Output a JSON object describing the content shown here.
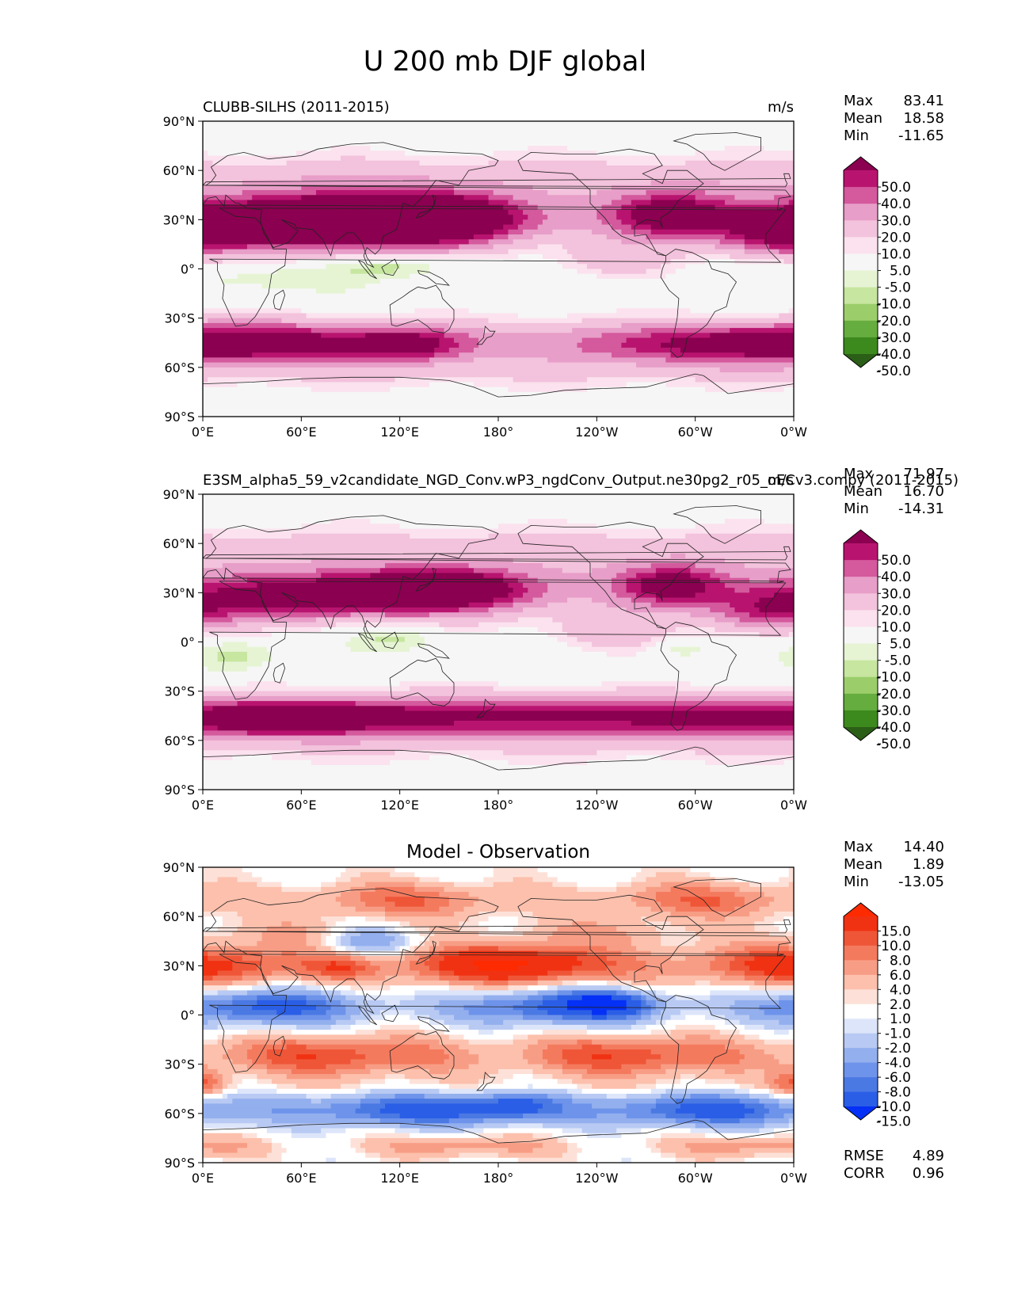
{
  "figure": {
    "title": "U 200 mb DJF global"
  },
  "palettes": {
    "field": [
      "#2b5e16",
      "#3c8a1e",
      "#66ad3f",
      "#9bce6b",
      "#c7e6a0",
      "#e6f4d4",
      "#f6f6f6",
      "#fbe2ee",
      "#f3c2dc",
      "#e79ec8",
      "#d4599d",
      "#b8146f",
      "#8b0050"
    ],
    "diff": [
      "#0530f5",
      "#2a5ee6",
      "#4b79e3",
      "#6e93ea",
      "#93afee",
      "#b8caf3",
      "#dde5fa",
      "#ffffff",
      "#fde1d8",
      "#fcc0ac",
      "#f89d85",
      "#f47a5e",
      "#ef5638",
      "#f03213",
      "#fe2a00"
    ],
    "land_line": "#222222"
  },
  "chart_data": [
    {
      "type": "heatmap",
      "panel": "reference",
      "title_left": "CLUBB-SILHS (2011-2015)",
      "title_center": "",
      "units": "m/s",
      "colormap": "field",
      "stats": [
        {
          "label": "Max",
          "value": "83.41"
        },
        {
          "label": "Mean",
          "value": "18.58"
        },
        {
          "label": "Min",
          "value": "-11.65"
        }
      ],
      "colorbar_labels": [
        "50.0",
        "40.0",
        "30.0",
        "20.0",
        "10.0",
        "5.0",
        "-5.0",
        "-10.0",
        "-20.0",
        "-30.0",
        "-40.0",
        "-50.0"
      ],
      "lat_ticks": [
        "90°N",
        "60°N",
        "30°N",
        "0°",
        "30°S",
        "60°S",
        "90°S"
      ],
      "lon_ticks": [
        "0°E",
        "60°E",
        "120°E",
        "180°",
        "120°W",
        "60°W",
        "0°W"
      ],
      "lat_range": [
        -90,
        90
      ],
      "lon_range": [
        0,
        360
      ],
      "jets": [
        {
          "lon": 60,
          "lat": 28,
          "peak": 55,
          "wlon": 55,
          "wlat": 10
        },
        {
          "lon": 140,
          "lat": 31,
          "peak": 60,
          "wlon": 35,
          "wlat": 9
        },
        {
          "lon": 100,
          "lat": 30,
          "peak": 38,
          "wlon": 50,
          "wlat": 12
        },
        {
          "lon": 285,
          "lat": 33,
          "peak": 50,
          "wlon": 25,
          "wlat": 9
        },
        {
          "lon": 350,
          "lat": 22,
          "peak": 38,
          "wlon": 25,
          "wlat": 10
        },
        {
          "lon": 40,
          "lat": -45,
          "peak": 40,
          "wlon": 50,
          "wlat": 8
        },
        {
          "lon": 125,
          "lat": -46,
          "peak": 36,
          "wlon": 25,
          "wlat": 7
        },
        {
          "lon": 310,
          "lat": -46,
          "peak": 33,
          "wlon": 55,
          "wlat": 8
        }
      ],
      "easterlies": [
        {
          "lon": 120,
          "lat": 2,
          "peak": -14,
          "wlon": 28,
          "wlat": 5
        },
        {
          "lon": 40,
          "lat": -5,
          "peak": -10,
          "wlon": 35,
          "wlat": 7
        }
      ],
      "westerly_bias": [
        {
          "lon": 250,
          "lat": 5,
          "peak": 14,
          "wlon": 25,
          "wlat": 7
        }
      ]
    },
    {
      "type": "heatmap",
      "panel": "test",
      "title_left": "E3SM_alpha5_59_v2candidate_NGD_Conv.wP3_ngdConv_Output.ne30pg2_r05_oECv3.compy (2011-2015)",
      "title_center": "",
      "units": "m/s",
      "colormap": "field",
      "stats": [
        {
          "label": "Max",
          "value": "71.97"
        },
        {
          "label": "Mean",
          "value": "16.70"
        },
        {
          "label": "Min",
          "value": "-14.31"
        }
      ],
      "colorbar_labels": [
        "50.0",
        "40.0",
        "30.0",
        "20.0",
        "10.0",
        "5.0",
        "-5.0",
        "-10.0",
        "-20.0",
        "-30.0",
        "-40.0",
        "-50.0"
      ],
      "lat_ticks": [
        "90°N",
        "60°N",
        "30°N",
        "0°",
        "30°S",
        "60°S",
        "90°S"
      ],
      "lon_ticks": [
        "0°E",
        "60°E",
        "120°E",
        "180°",
        "120°W",
        "60°W",
        "0°W"
      ],
      "lat_range": [
        -90,
        90
      ],
      "lon_range": [
        0,
        360
      ],
      "jets": [
        {
          "lon": 75,
          "lat": 28,
          "peak": 50,
          "wlon": 60,
          "wlat": 9
        },
        {
          "lon": 145,
          "lat": 33,
          "peak": 55,
          "wlon": 35,
          "wlat": 8
        },
        {
          "lon": 285,
          "lat": 35,
          "peak": 45,
          "wlon": 22,
          "wlat": 8
        },
        {
          "lon": 345,
          "lat": 18,
          "peak": 32,
          "wlon": 25,
          "wlat": 9
        },
        {
          "lon": 50,
          "lat": -47,
          "peak": 42,
          "wlon": 40,
          "wlat": 7
        },
        {
          "lon": 150,
          "lat": -45,
          "peak": 34,
          "wlon": 70,
          "wlat": 8
        },
        {
          "lon": 300,
          "lat": -46,
          "peak": 32,
          "wlon": 60,
          "wlat": 8
        }
      ],
      "easterlies": [
        {
          "lon": 120,
          "lat": 3,
          "peak": -13,
          "wlon": 20,
          "wlat": 6
        },
        {
          "lon": 20,
          "lat": -8,
          "peak": -14,
          "wlon": 18,
          "wlat": 8
        },
        {
          "lon": 290,
          "lat": -4,
          "peak": -10,
          "wlon": 12,
          "wlat": 4
        }
      ],
      "westerly_bias": [
        {
          "lon": 245,
          "lat": 5,
          "peak": 15,
          "wlon": 25,
          "wlat": 8
        }
      ]
    },
    {
      "type": "heatmap",
      "panel": "difference",
      "title_left": "",
      "title_center": "Model - Observation",
      "units": "",
      "colormap": "diff",
      "stats": [
        {
          "label": "Max",
          "value": "14.40"
        },
        {
          "label": "Mean",
          "value": "1.89"
        },
        {
          "label": "Min",
          "value": "-13.05"
        }
      ],
      "colorbar_labels": [
        "15.0",
        "10.0",
        "8.0",
        "6.0",
        "4.0",
        "2.0",
        "1.0",
        "-1.0",
        "-2.0",
        "-4.0",
        "-6.0",
        "-8.0",
        "-10.0",
        "-15.0"
      ],
      "extra_stats": [
        {
          "label": "RMSE",
          "value": "4.89"
        },
        {
          "label": "CORR",
          "value": "0.96"
        }
      ],
      "lat_ticks": [
        "90°N",
        "60°N",
        "30°N",
        "0°",
        "30°S",
        "60°S",
        "90°S"
      ],
      "lon_ticks": [
        "0°E",
        "60°E",
        "120°E",
        "180°",
        "120°W",
        "60°W",
        "0°W"
      ],
      "lat_range": [
        -90,
        90
      ],
      "lon_range": [
        0,
        360
      ],
      "bands": [
        {
          "lat": 70,
          "amp": 5,
          "w": 8,
          "wave": 0.5
        },
        {
          "lat": 50,
          "amp": 2,
          "w": 6,
          "wave": -0.8
        },
        {
          "lat": 30,
          "amp": 8,
          "w": 9,
          "wave": 0.4
        },
        {
          "lat": 5,
          "amp": -7,
          "w": 8,
          "wave": 0.6
        },
        {
          "lat": -25,
          "amp": 7,
          "w": 9,
          "wave": 0.4
        },
        {
          "lat": -43,
          "amp": 1,
          "w": 3,
          "wave": 0.0
        },
        {
          "lat": -58,
          "amp": -8,
          "w": 7,
          "wave": 0.4
        },
        {
          "lat": -80,
          "amp": 3,
          "w": 5,
          "wave": 0.8
        }
      ],
      "blobs": [
        {
          "lon": 245,
          "lat": 7,
          "peak": -10,
          "wlon": 18,
          "wlat": 5
        },
        {
          "lon": 190,
          "lat": -55,
          "peak": -7,
          "wlon": 20,
          "wlat": 6
        },
        {
          "lon": 100,
          "lat": 45,
          "peak": -8,
          "wlon": 20,
          "wlat": 7
        },
        {
          "lon": 85,
          "lat": 30,
          "peak": 5,
          "wlon": 15,
          "wlat": 6
        },
        {
          "lon": 0,
          "lat": -42,
          "peak": 7,
          "wlon": 10,
          "wlat": 6
        },
        {
          "lon": 195,
          "lat": 32,
          "peak": 5,
          "wlon": 35,
          "wlat": 7
        }
      ]
    }
  ]
}
